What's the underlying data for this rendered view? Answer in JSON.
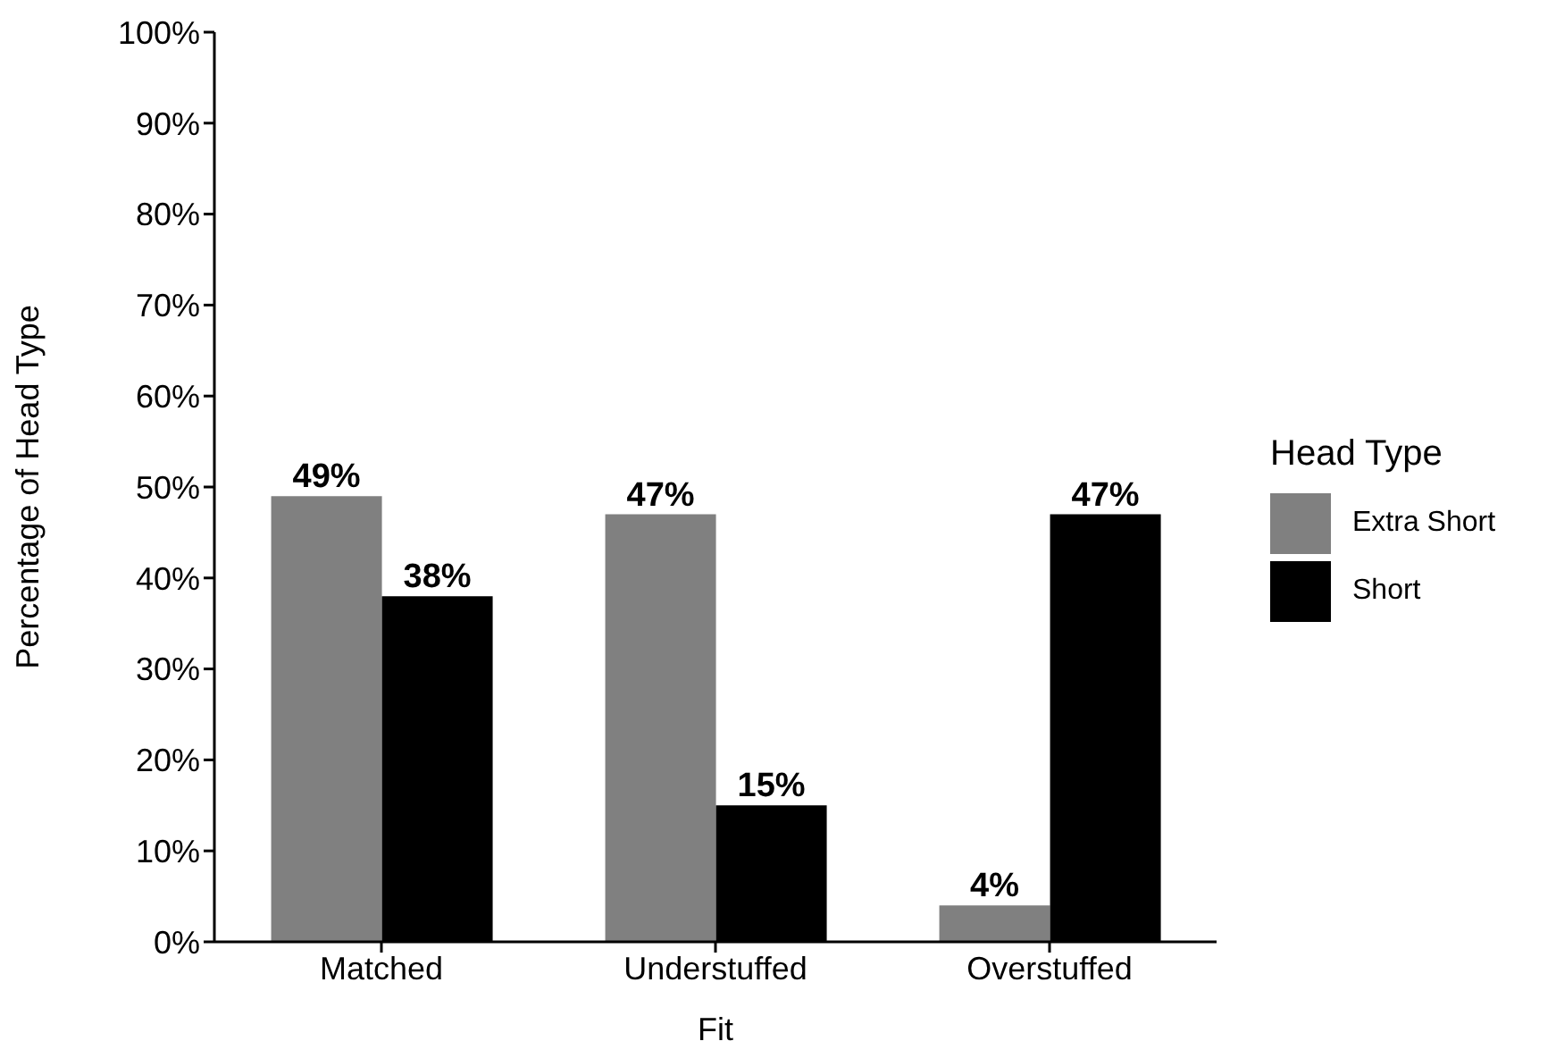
{
  "chart_data": {
    "type": "bar",
    "xlabel": "Fit",
    "ylabel": "Percentage of Head Type",
    "legend_title": "Head Type",
    "categories": [
      "Matched",
      "Understuffed",
      "Overstuffed"
    ],
    "series": [
      {
        "name": "Extra Short",
        "color": "#808080",
        "values": [
          49,
          47,
          4
        ],
        "value_labels": [
          "49%",
          "47%",
          "4%"
        ]
      },
      {
        "name": "Short",
        "color": "#000000",
        "values": [
          38,
          15,
          47
        ],
        "value_labels": [
          "38%",
          "15%",
          "47%"
        ]
      }
    ],
    "ylim": [
      0,
      100
    ],
    "yticks": [
      {
        "value": 0,
        "label": "0%"
      },
      {
        "value": 10,
        "label": "10%"
      },
      {
        "value": 20,
        "label": "20%"
      },
      {
        "value": 30,
        "label": "30%"
      },
      {
        "value": 40,
        "label": "40%"
      },
      {
        "value": 50,
        "label": "50%"
      },
      {
        "value": 60,
        "label": "60%"
      },
      {
        "value": 70,
        "label": "70%"
      },
      {
        "value": 80,
        "label": "80%"
      },
      {
        "value": 90,
        "label": "90%"
      },
      {
        "value": 100,
        "label": "100%"
      }
    ],
    "grid": false,
    "legend": "right"
  }
}
